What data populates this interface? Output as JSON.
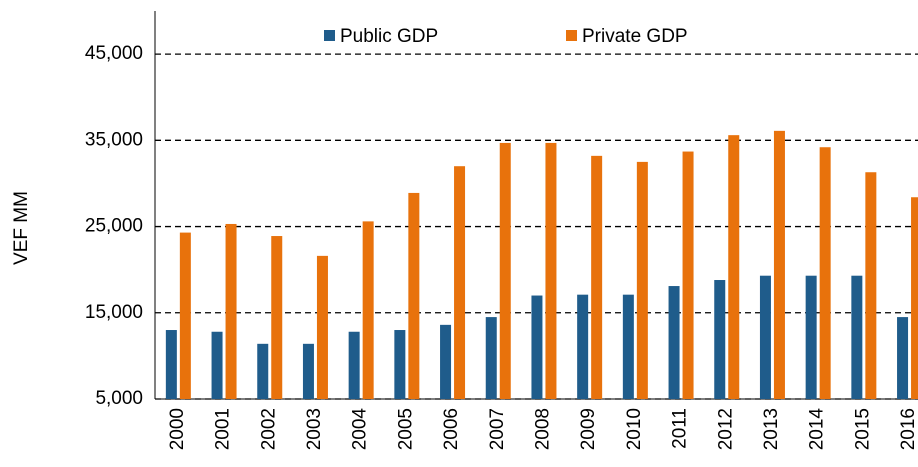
{
  "chart_data": {
    "type": "bar",
    "y_label": "VEF MM",
    "categories": [
      "2000",
      "2001",
      "2002",
      "2003",
      "2004",
      "2005",
      "2006",
      "2007",
      "2008",
      "2009",
      "2010",
      "2011",
      "2012",
      "2013",
      "2014",
      "2015",
      "2016"
    ],
    "series": [
      {
        "name": "Public GDP",
        "color": "#1f5c8b",
        "values": [
          13000,
          12800,
          11400,
          11400,
          12800,
          13000,
          13600,
          14500,
          17000,
          17100,
          17100,
          18100,
          18800,
          19300,
          19300,
          19300,
          14500
        ]
      },
      {
        "name": "Private GDP",
        "color": "#e8720c",
        "values": [
          24300,
          25300,
          23900,
          21600,
          25600,
          28900,
          32000,
          34700,
          34700,
          33200,
          32500,
          33700,
          35600,
          36100,
          34200,
          31300,
          28400
        ]
      }
    ],
    "ylim": [
      5000,
      50000
    ],
    "yticks": [
      {
        "value": 5000,
        "label": "5,000"
      },
      {
        "value": 15000,
        "label": "15,000"
      },
      {
        "value": 25000,
        "label": "25,000"
      },
      {
        "value": 35000,
        "label": "35,000"
      },
      {
        "value": 45000,
        "label": "45,000"
      }
    ],
    "grid": true,
    "legend": "top"
  }
}
